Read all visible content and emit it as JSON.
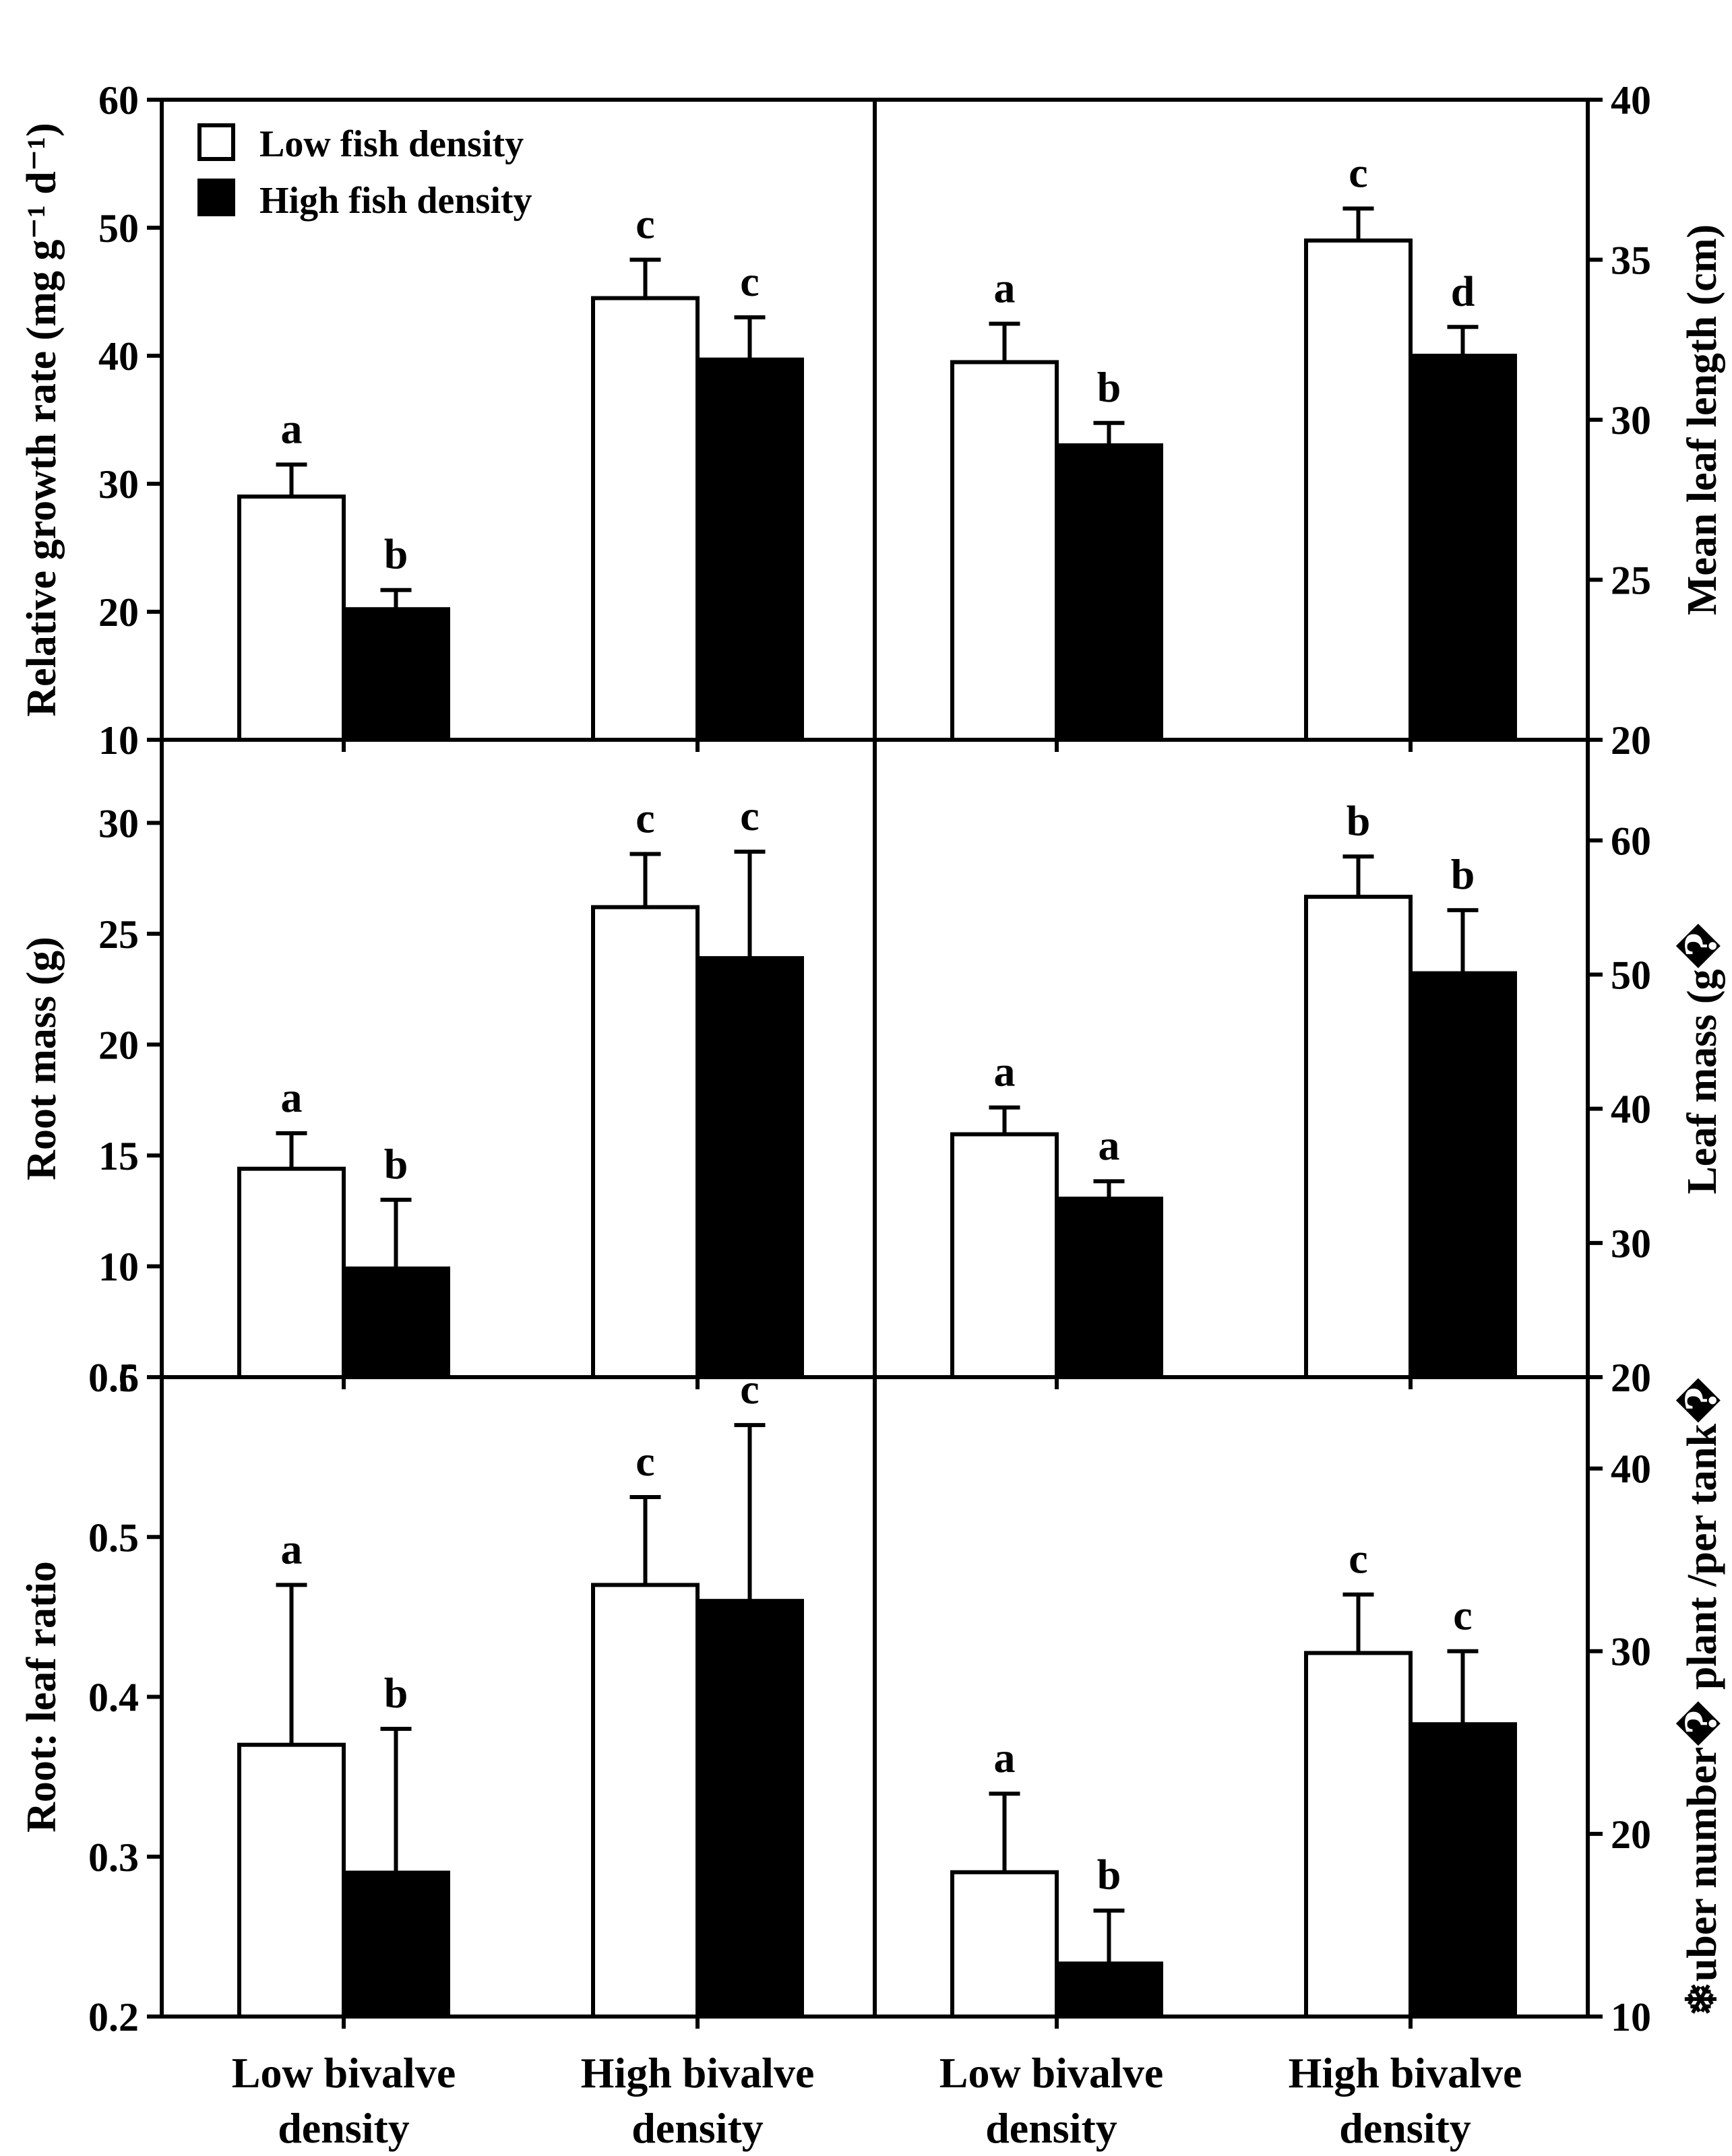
{
  "legend": [
    {
      "label": "Low fish density",
      "fill": "#ffffff"
    },
    {
      "label": "High fish density",
      "fill": "#000000"
    }
  ],
  "categories": [
    {
      "line1": "Low bivalve",
      "line2": "density"
    },
    {
      "line1": "High bivalve",
      "line2": "density"
    },
    {
      "line1": "Low bivalve",
      "line2": "density"
    },
    {
      "line1": "High bivalve",
      "line2": "density"
    }
  ],
  "chart_data": [
    {
      "type": "bar",
      "panel": "top-left",
      "axis_side": "left",
      "ylabel": "Relative growth rate (mg g⁻¹ d⁻¹)",
      "ylim": [
        10,
        60
      ],
      "ticks": [
        10,
        20,
        30,
        40,
        50,
        60
      ],
      "categories": [
        "Low bivalve density",
        "High bivalve density"
      ],
      "series": [
        {
          "name": "Low fish density",
          "values": [
            29,
            44.5
          ],
          "errors": [
            2.5,
            3
          ],
          "labels": [
            "a",
            "c"
          ]
        },
        {
          "name": "High fish density",
          "values": [
            20.2,
            39.7
          ],
          "errors": [
            1.5,
            3.3
          ],
          "labels": [
            "b",
            "c"
          ]
        }
      ]
    },
    {
      "type": "bar",
      "panel": "top-right",
      "axis_side": "right",
      "ylabel": "Mean leaf length (cm)",
      "ylim": [
        20,
        40
      ],
      "ticks": [
        20,
        25,
        30,
        35,
        40
      ],
      "categories": [
        "Low bivalve density",
        "High bivalve density"
      ],
      "series": [
        {
          "name": "Low fish density",
          "values": [
            31.8,
            35.6
          ],
          "errors": [
            1.2,
            1.0
          ],
          "labels": [
            "a",
            "c"
          ]
        },
        {
          "name": "High fish density",
          "values": [
            29.2,
            32
          ],
          "errors": [
            0.7,
            0.9
          ],
          "labels": [
            "b",
            "d"
          ]
        }
      ]
    },
    {
      "type": "bar",
      "panel": "middle-left",
      "axis_side": "left",
      "ylabel": "Root mass (g)",
      "ylim": [
        5,
        33.75
      ],
      "ticks": [
        5,
        10,
        15,
        20,
        25,
        30
      ],
      "categories": [
        "Low bivalve density",
        "High bivalve density"
      ],
      "series": [
        {
          "name": "Low fish density",
          "values": [
            14.4,
            26.2
          ],
          "errors": [
            1.6,
            2.4
          ],
          "labels": [
            "a",
            "c"
          ]
        },
        {
          "name": "High fish density",
          "values": [
            9.9,
            23.9
          ],
          "errors": [
            3.1,
            4.8
          ],
          "labels": [
            "b",
            "c"
          ]
        }
      ]
    },
    {
      "type": "bar",
      "panel": "middle-right",
      "axis_side": "right",
      "ylabel": "Leaf mass (g�",
      "ylim": [
        20,
        67.5
      ],
      "ticks": [
        20,
        30,
        40,
        50,
        60
      ],
      "categories": [
        "Low bivalve density",
        "High bivalve density"
      ],
      "series": [
        {
          "name": "Low fish density",
          "values": [
            38.1,
            55.8
          ],
          "errors": [
            2.0,
            3.0
          ],
          "labels": [
            "a",
            "b"
          ]
        },
        {
          "name": "High fish density",
          "values": [
            33.3,
            50.1
          ],
          "errors": [
            1.3,
            4.7
          ],
          "labels": [
            "a",
            "b"
          ]
        }
      ]
    },
    {
      "type": "bar",
      "panel": "bottom-left",
      "axis_side": "left",
      "ylabel": "Root: leaf ratio",
      "ylim": [
        0.2,
        0.6
      ],
      "ticks": [
        0.2,
        0.3,
        0.4,
        0.5,
        0.6
      ],
      "tick_labels": [
        "0.2",
        "0.3",
        "0.4",
        "0.5",
        "0.6"
      ],
      "categories": [
        "Low bivalve density",
        "High bivalve density"
      ],
      "series": [
        {
          "name": "Low fish density",
          "values": [
            0.37,
            0.47
          ],
          "errors": [
            0.1,
            0.055
          ],
          "labels": [
            "a",
            "c"
          ]
        },
        {
          "name": "High fish density",
          "values": [
            0.29,
            0.46
          ],
          "errors": [
            0.09,
            0.11
          ],
          "labels": [
            "b",
            "c"
          ]
        }
      ]
    },
    {
      "type": "bar",
      "panel": "bottom-right",
      "axis_side": "right",
      "ylabel": "❄uber number� plant /per tank�",
      "ylim": [
        10,
        45
      ],
      "ticks": [
        10,
        20,
        30,
        40
      ],
      "categories": [
        "Low bivalve density",
        "High bivalve density"
      ],
      "series": [
        {
          "name": "Low fish density",
          "values": [
            17.9,
            29.9
          ],
          "errors": [
            4.3,
            3.2
          ],
          "labels": [
            "a",
            "c"
          ]
        },
        {
          "name": "High fish density",
          "values": [
            12.9,
            26
          ],
          "errors": [
            2.9,
            4.0
          ],
          "labels": [
            "b",
            "c"
          ]
        }
      ]
    }
  ]
}
